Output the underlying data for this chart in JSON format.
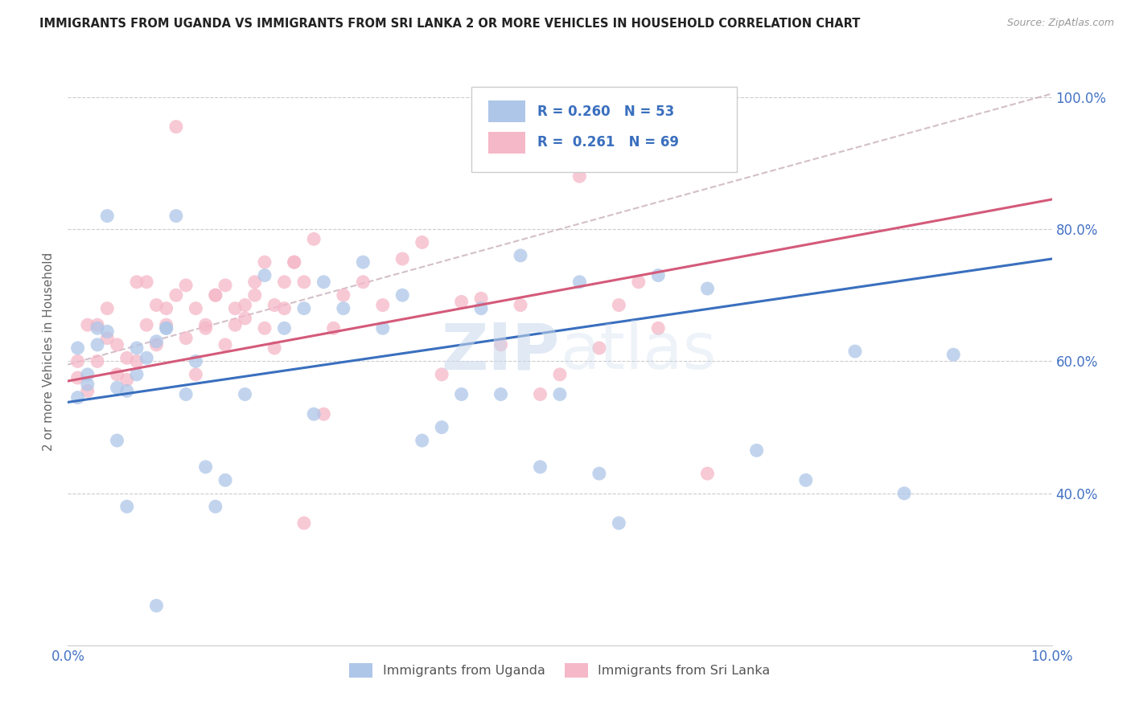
{
  "title": "IMMIGRANTS FROM UGANDA VS IMMIGRANTS FROM SRI LANKA 2 OR MORE VEHICLES IN HOUSEHOLD CORRELATION CHART",
  "source": "Source: ZipAtlas.com",
  "ylabel": "2 or more Vehicles in Household",
  "legend_label_1": "Immigrants from Uganda",
  "legend_label_2": "Immigrants from Sri Lanka",
  "r1": 0.26,
  "n1": 53,
  "r2": 0.261,
  "n2": 69,
  "color_uganda": "#aec6e8",
  "color_srilanka": "#f5b8c8",
  "color_uganda_line": "#3a6fbe",
  "color_srilanka_line": "#d45a7a",
  "color_diag_line": "#c8b0bc",
  "xlim": [
    0.0,
    0.1
  ],
  "ylim": [
    0.17,
    1.06
  ],
  "uganda_line": [
    0.0,
    0.538,
    0.1,
    0.755
  ],
  "srilanka_line": [
    0.0,
    0.57,
    0.1,
    0.845
  ],
  "diag_line": [
    0.0,
    0.595,
    0.1,
    1.005
  ],
  "uganda_x": [
    0.001,
    0.002,
    0.003,
    0.004,
    0.005,
    0.006,
    0.007,
    0.008,
    0.009,
    0.01,
    0.011,
    0.012,
    0.013,
    0.014,
    0.015,
    0.016,
    0.018,
    0.02,
    0.022,
    0.024,
    0.025,
    0.026,
    0.028,
    0.03,
    0.032,
    0.034,
    0.036,
    0.038,
    0.04,
    0.042,
    0.044,
    0.046,
    0.048,
    0.05,
    0.052,
    0.054,
    0.056,
    0.06,
    0.065,
    0.07,
    0.075,
    0.08,
    0.085,
    0.09,
    0.001,
    0.002,
    0.003,
    0.004,
    0.005,
    0.006,
    0.007,
    0.009,
    0.01
  ],
  "uganda_y": [
    0.62,
    0.58,
    0.625,
    0.645,
    0.56,
    0.555,
    0.58,
    0.605,
    0.63,
    0.65,
    0.82,
    0.55,
    0.6,
    0.44,
    0.38,
    0.42,
    0.55,
    0.73,
    0.65,
    0.68,
    0.52,
    0.72,
    0.68,
    0.75,
    0.65,
    0.7,
    0.48,
    0.5,
    0.55,
    0.68,
    0.55,
    0.76,
    0.44,
    0.55,
    0.72,
    0.43,
    0.355,
    0.73,
    0.71,
    0.465,
    0.42,
    0.615,
    0.4,
    0.61,
    0.545,
    0.565,
    0.65,
    0.82,
    0.48,
    0.38,
    0.62,
    0.23,
    0.65
  ],
  "srilanka_x": [
    0.001,
    0.002,
    0.003,
    0.004,
    0.005,
    0.006,
    0.007,
    0.008,
    0.009,
    0.01,
    0.011,
    0.012,
    0.013,
    0.014,
    0.015,
    0.016,
    0.017,
    0.018,
    0.019,
    0.02,
    0.021,
    0.022,
    0.023,
    0.024,
    0.025,
    0.026,
    0.027,
    0.028,
    0.03,
    0.032,
    0.034,
    0.036,
    0.038,
    0.04,
    0.042,
    0.044,
    0.046,
    0.048,
    0.05,
    0.052,
    0.054,
    0.056,
    0.058,
    0.06,
    0.065,
    0.001,
    0.002,
    0.003,
    0.004,
    0.005,
    0.006,
    0.007,
    0.008,
    0.009,
    0.01,
    0.011,
    0.012,
    0.013,
    0.014,
    0.015,
    0.016,
    0.017,
    0.018,
    0.019,
    0.02,
    0.021,
    0.022,
    0.023,
    0.024
  ],
  "srilanka_y": [
    0.575,
    0.555,
    0.6,
    0.635,
    0.58,
    0.572,
    0.6,
    0.655,
    0.625,
    0.68,
    0.955,
    0.635,
    0.58,
    0.655,
    0.7,
    0.625,
    0.655,
    0.685,
    0.72,
    0.65,
    0.62,
    0.68,
    0.75,
    0.72,
    0.785,
    0.52,
    0.65,
    0.7,
    0.72,
    0.685,
    0.755,
    0.78,
    0.58,
    0.69,
    0.695,
    0.625,
    0.685,
    0.55,
    0.58,
    0.88,
    0.62,
    0.685,
    0.72,
    0.65,
    0.43,
    0.6,
    0.655,
    0.655,
    0.68,
    0.625,
    0.605,
    0.72,
    0.72,
    0.685,
    0.655,
    0.7,
    0.715,
    0.68,
    0.65,
    0.7,
    0.715,
    0.68,
    0.665,
    0.7,
    0.75,
    0.685,
    0.72,
    0.75,
    0.355
  ]
}
